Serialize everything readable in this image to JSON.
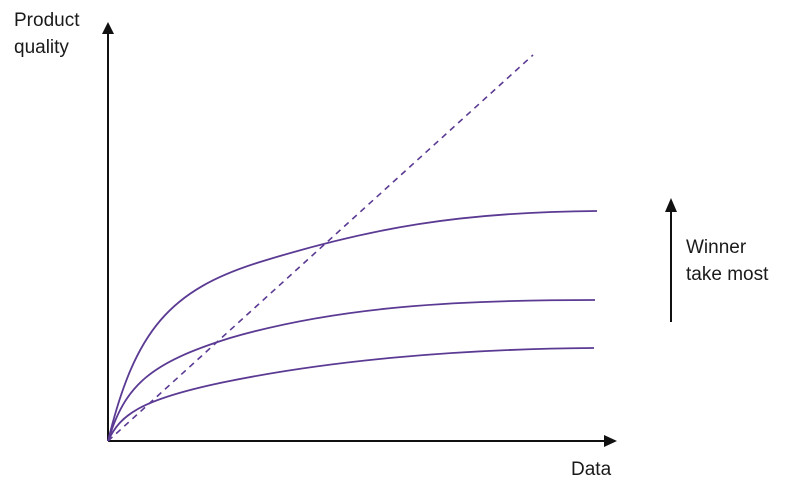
{
  "labels": {
    "y_axis_line1": "Product",
    "y_axis_line2": "quality",
    "x_axis": "Data",
    "annotation_line1": "Winner",
    "annotation_line2": "take most"
  },
  "colors": {
    "axis": "#111111",
    "curve": "#5b3a93",
    "dashed": "#5b3a93",
    "text": "#1a1a1a"
  }
}
